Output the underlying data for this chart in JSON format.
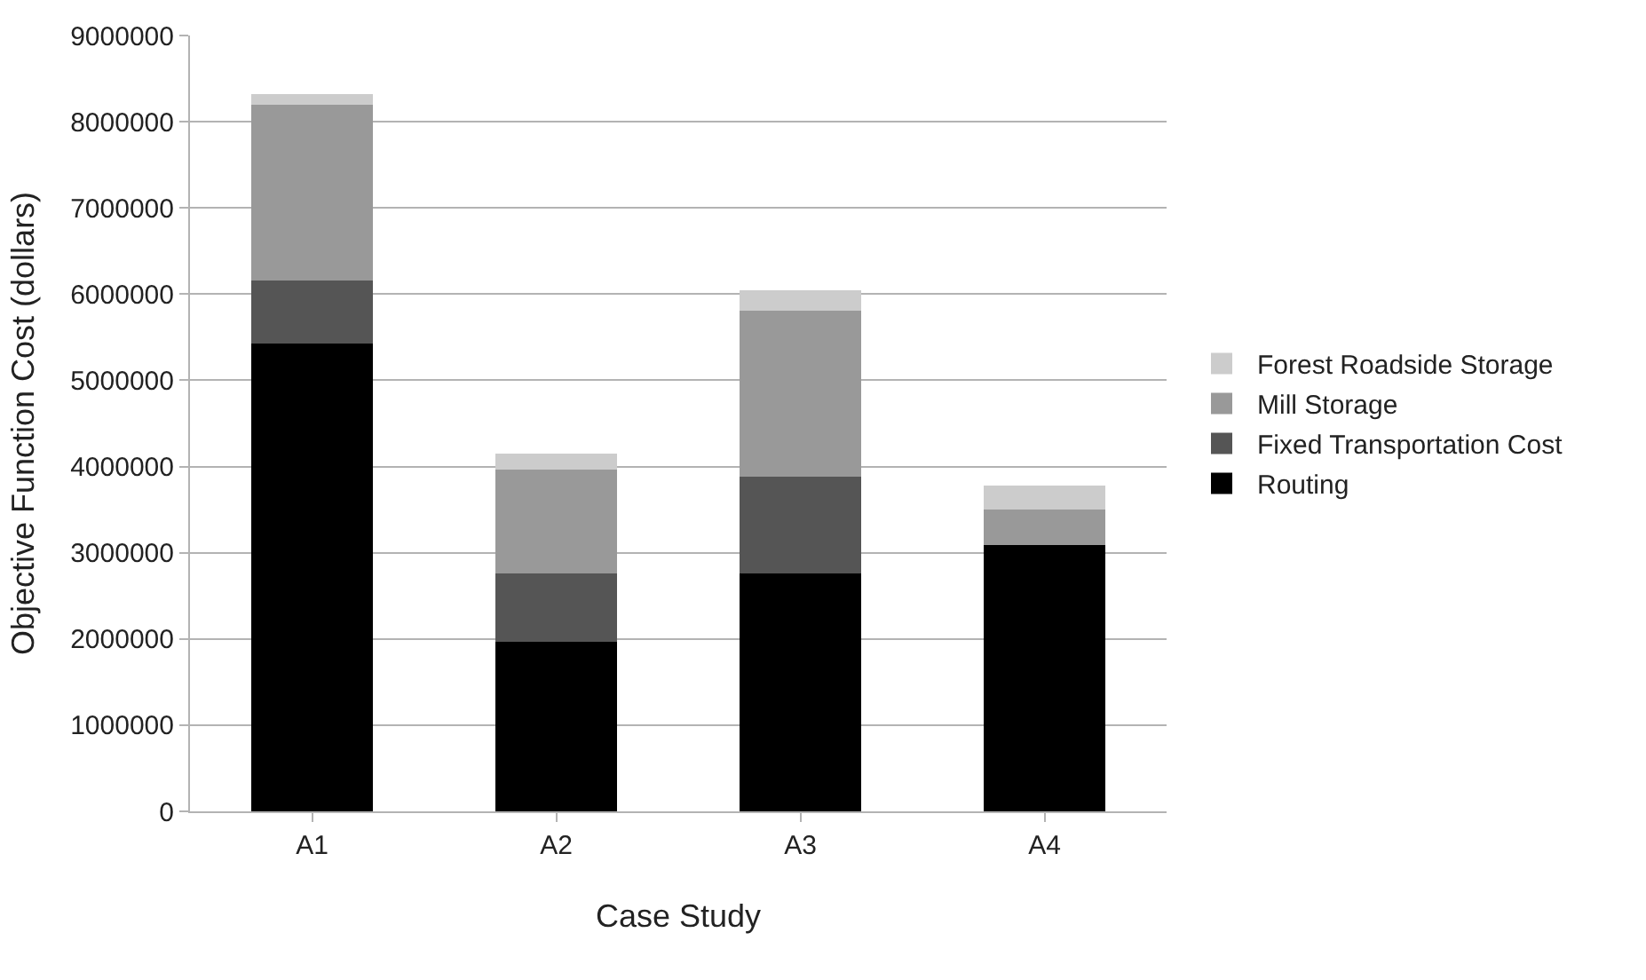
{
  "chart_data": {
    "type": "bar",
    "stacked": true,
    "xlabel": "Case Study",
    "ylabel": "Objective Function Cost (dollars)",
    "categories": [
      "A1",
      "A2",
      "A3",
      "A4"
    ],
    "series": [
      {
        "name": "Routing",
        "color": "#000000",
        "values": [
          5430000,
          1970000,
          2760000,
          3090000
        ]
      },
      {
        "name": "Fixed Transportation Cost",
        "color": "#555555",
        "values": [
          730000,
          790000,
          1120000,
          0
        ]
      },
      {
        "name": "Mill Storage",
        "color": "#999999",
        "values": [
          2040000,
          1200000,
          1930000,
          410000
        ]
      },
      {
        "name": "Forest Roadside Storage",
        "color": "#cccccc",
        "values": [
          120000,
          190000,
          230000,
          280000
        ]
      }
    ],
    "ylim": [
      0,
      9000000
    ],
    "yticks": [
      0,
      1000000,
      2000000,
      3000000,
      4000000,
      5000000,
      6000000,
      7000000,
      8000000,
      9000000
    ],
    "grid": "y",
    "legend": "right"
  }
}
